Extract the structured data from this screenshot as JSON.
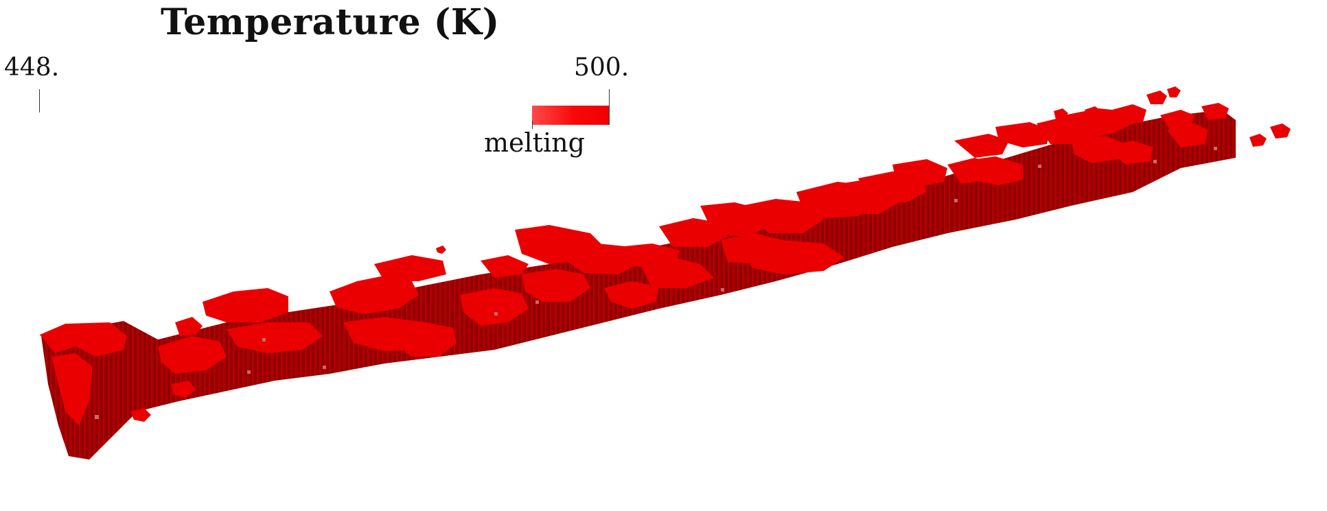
{
  "legend": {
    "title": "Temperature (K)",
    "min_label": "448.",
    "max_label": "500.",
    "category_label": "melting",
    "colors": {
      "melting_light": "#ff4a4a",
      "melting_dark": "#f00000",
      "shadow": "#8a0000"
    }
  },
  "scene": {
    "subject": "melting-region",
    "color": "#e80000"
  }
}
